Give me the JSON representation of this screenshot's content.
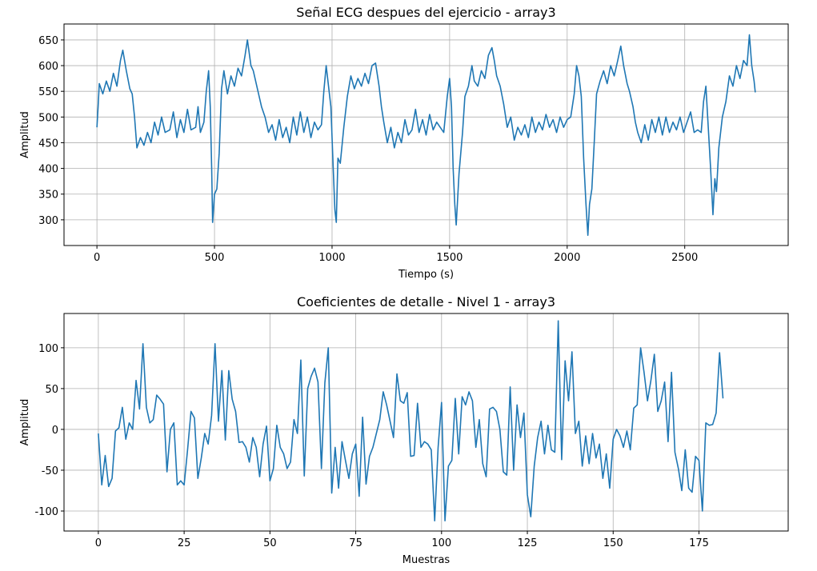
{
  "chart_data": [
    {
      "type": "line",
      "title": "Señal ECG despues del ejercicio - array3",
      "xlabel": "Tiempo (s)",
      "ylabel": "Amplitud",
      "xlim": [
        -140,
        2940
      ],
      "ylim": [
        250,
        681
      ],
      "xticks": [
        0,
        500,
        1000,
        1500,
        2000,
        2500
      ],
      "yticks": [
        300,
        350,
        400,
        450,
        500,
        550,
        600,
        650
      ],
      "grid": true,
      "x": [
        0,
        5,
        10,
        25,
        40,
        55,
        70,
        85,
        100,
        110,
        125,
        140,
        150,
        160,
        170,
        185,
        200,
        215,
        230,
        245,
        260,
        275,
        290,
        310,
        325,
        340,
        355,
        370,
        385,
        400,
        420,
        430,
        440,
        455,
        465,
        475,
        482,
        488,
        492,
        500,
        510,
        520,
        530,
        540,
        555,
        570,
        585,
        600,
        615,
        630,
        640,
        655,
        665,
        680,
        690,
        700,
        715,
        730,
        745,
        760,
        775,
        790,
        805,
        820,
        835,
        850,
        865,
        880,
        895,
        910,
        925,
        940,
        955,
        965,
        975,
        985,
        995,
        1005,
        1012,
        1018,
        1025,
        1035,
        1050,
        1065,
        1080,
        1095,
        1110,
        1125,
        1140,
        1155,
        1170,
        1185,
        1200,
        1210,
        1220,
        1235,
        1250,
        1265,
        1280,
        1295,
        1310,
        1325,
        1340,
        1355,
        1370,
        1385,
        1400,
        1415,
        1430,
        1445,
        1460,
        1475,
        1490,
        1500,
        1508,
        1515,
        1522,
        1528,
        1540,
        1555,
        1565,
        1580,
        1595,
        1605,
        1620,
        1635,
        1650,
        1665,
        1680,
        1690,
        1700,
        1715,
        1730,
        1745,
        1760,
        1775,
        1790,
        1805,
        1820,
        1835,
        1850,
        1865,
        1880,
        1895,
        1910,
        1925,
        1940,
        1955,
        1970,
        1985,
        2000,
        2015,
        2030,
        2040,
        2050,
        2060,
        2070,
        2080,
        2088,
        2095,
        2105,
        2115,
        2125,
        2140,
        2155,
        2170,
        2185,
        2200,
        2215,
        2228,
        2240,
        2255,
        2265,
        2280,
        2290,
        2300,
        2315,
        2330,
        2345,
        2360,
        2375,
        2390,
        2405,
        2420,
        2435,
        2450,
        2465,
        2480,
        2495,
        2510,
        2525,
        2540,
        2555,
        2570,
        2580,
        2590,
        2600,
        2610,
        2620,
        2628,
        2635,
        2645,
        2660,
        2675,
        2690,
        2705,
        2720,
        2735,
        2750,
        2765,
        2775,
        2785,
        2795,
        2800
      ],
      "series": [
        {
          "color": "#1f77b4",
          "values": [
            480,
            520,
            565,
            545,
            570,
            550,
            585,
            560,
            610,
            630,
            590,
            555,
            545,
            500,
            440,
            460,
            445,
            470,
            450,
            490,
            465,
            500,
            470,
            475,
            510,
            460,
            495,
            470,
            515,
            475,
            480,
            520,
            470,
            490,
            550,
            590,
            520,
            400,
            295,
            350,
            360,
            430,
            555,
            590,
            545,
            580,
            560,
            595,
            580,
            620,
            650,
            600,
            590,
            560,
            540,
            520,
            500,
            470,
            485,
            455,
            495,
            460,
            480,
            450,
            500,
            465,
            510,
            470,
            500,
            460,
            490,
            475,
            485,
            550,
            600,
            560,
            520,
            400,
            320,
            295,
            420,
            410,
            480,
            540,
            580,
            555,
            575,
            560,
            585,
            565,
            600,
            605,
            560,
            520,
            490,
            450,
            480,
            440,
            470,
            450,
            495,
            465,
            475,
            515,
            470,
            495,
            465,
            505,
            475,
            490,
            480,
            470,
            540,
            575,
            520,
            400,
            330,
            290,
            390,
            470,
            540,
            560,
            600,
            570,
            560,
            590,
            575,
            620,
            635,
            610,
            580,
            560,
            525,
            480,
            500,
            455,
            480,
            465,
            485,
            460,
            500,
            470,
            490,
            475,
            505,
            480,
            495,
            470,
            500,
            480,
            495,
            500,
            545,
            600,
            580,
            540,
            420,
            330,
            270,
            330,
            360,
            450,
            545,
            570,
            590,
            565,
            600,
            580,
            610,
            638,
            600,
            565,
            550,
            520,
            490,
            470,
            450,
            485,
            455,
            495,
            470,
            500,
            465,
            500,
            470,
            490,
            475,
            500,
            470,
            490,
            510,
            470,
            475,
            470,
            530,
            560,
            480,
            400,
            310,
            380,
            355,
            440,
            500,
            530,
            580,
            560,
            600,
            575,
            610,
            600,
            660,
            600,
            570,
            548
          ]
        }
      ]
    },
    {
      "type": "line",
      "title": "Coeficientes de detalle - Nivel 1 - array3",
      "xlabel": "Muestras",
      "ylabel": "Amplitud",
      "xlim": [
        -10,
        201
      ],
      "ylim": [
        -124.5,
        142
      ],
      "xticks": [
        0,
        25,
        50,
        75,
        100,
        125,
        150,
        175
      ],
      "yticks": [
        -100,
        -50,
        0,
        50,
        100
      ],
      "grid": true,
      "x": [
        0,
        1,
        2,
        3,
        4,
        5,
        6,
        7,
        8,
        9,
        10,
        11,
        12,
        13,
        14,
        15,
        16,
        17,
        18,
        19,
        20,
        21,
        22,
        23,
        24,
        25,
        26,
        27,
        28,
        29,
        30,
        31,
        32,
        33,
        34,
        35,
        36,
        37,
        38,
        39,
        40,
        41,
        42,
        43,
        44,
        45,
        46,
        47,
        48,
        49,
        50,
        51,
        52,
        53,
        54,
        55,
        56,
        57,
        58,
        59,
        60,
        61,
        62,
        63,
        64,
        65,
        66,
        67,
        68,
        69,
        70,
        71,
        72,
        73,
        74,
        75,
        76,
        77,
        78,
        79,
        80,
        81,
        82,
        83,
        84,
        85,
        86,
        87,
        88,
        89,
        90,
        91,
        92,
        93,
        94,
        95,
        96,
        97,
        98,
        99,
        100,
        101,
        102,
        103,
        104,
        105,
        106,
        107,
        108,
        109,
        110,
        111,
        112,
        113,
        114,
        115,
        116,
        117,
        118,
        119,
        120,
        121,
        122,
        123,
        124,
        125,
        126,
        127,
        128,
        129,
        130,
        131,
        132,
        133,
        134,
        135,
        136,
        137,
        138,
        139,
        140,
        141,
        142,
        143,
        144,
        145,
        146,
        147,
        148,
        149,
        150,
        151,
        152,
        153,
        154,
        155,
        156,
        157,
        158,
        159,
        160,
        161,
        162,
        163,
        164,
        165,
        166,
        167,
        168,
        169,
        170,
        171,
        172,
        173,
        174,
        175,
        176,
        177,
        178,
        179,
        180,
        181,
        182
      ],
      "series": [
        {
          "color": "#1f77b4",
          "values": [
            -5,
            -68,
            -32,
            -70,
            -60,
            -2,
            2,
            27,
            -12,
            8,
            0,
            60,
            25,
            105,
            27,
            8,
            12,
            42,
            37,
            31,
            -52,
            0,
            8,
            -68,
            -63,
            -68,
            -25,
            22,
            14,
            -60,
            -35,
            -5,
            -18,
            17,
            105,
            10,
            72,
            -13,
            72,
            37,
            22,
            -16,
            -15,
            -22,
            -40,
            -10,
            -22,
            -58,
            -18,
            4,
            -63,
            -48,
            5,
            -22,
            -30,
            -48,
            -40,
            12,
            -5,
            85,
            -57,
            50,
            65,
            75,
            58,
            -48,
            57,
            100,
            -78,
            -22,
            -72,
            -15,
            -38,
            -60,
            -30,
            -18,
            -82,
            15,
            -67,
            -33,
            -22,
            -5,
            12,
            46,
            30,
            10,
            -10,
            68,
            35,
            32,
            45,
            -33,
            -32,
            32,
            -22,
            -15,
            -18,
            -25,
            -112,
            -22,
            33,
            -112,
            -45,
            -38,
            38,
            -30,
            40,
            30,
            46,
            35,
            -22,
            12,
            -42,
            -58,
            25,
            27,
            22,
            0,
            -52,
            -56,
            52,
            -50,
            30,
            -10,
            20,
            -80,
            -107,
            -45,
            -10,
            10,
            -30,
            5,
            -25,
            -28,
            133,
            -37,
            84,
            35,
            95,
            -5,
            10,
            -45,
            -8,
            -42,
            -5,
            -35,
            -18,
            -60,
            -30,
            -72,
            -12,
            0,
            -8,
            -22,
            -2,
            -25,
            26,
            30,
            100,
            70,
            35,
            60,
            92,
            22,
            35,
            58,
            -15,
            70,
            -28,
            -48,
            -75,
            -25,
            -72,
            -77,
            -33,
            -38,
            -100,
            8,
            5,
            6,
            20,
            94,
            38
          ]
        }
      ]
    }
  ]
}
